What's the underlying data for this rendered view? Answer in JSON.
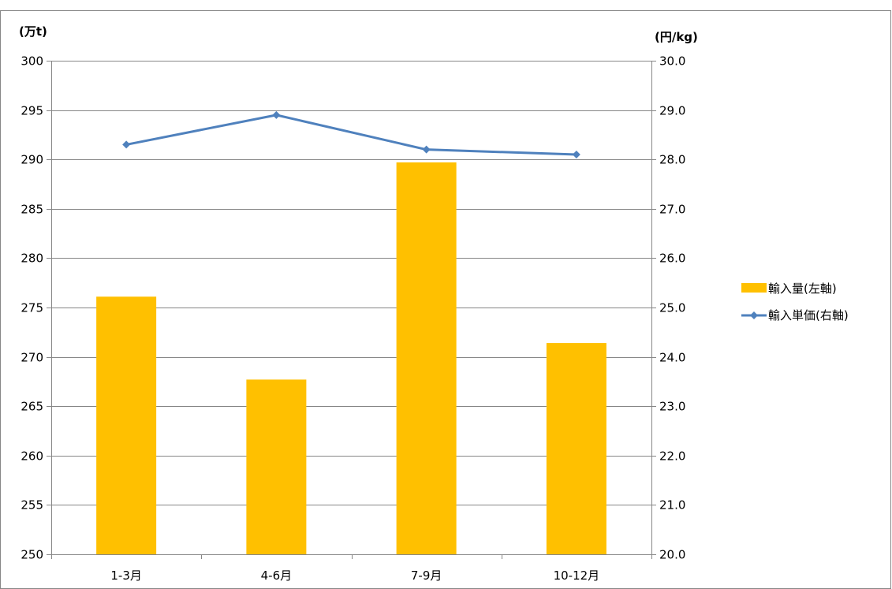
{
  "chart_data": {
    "type": "bar",
    "categories": [
      "1-3月",
      "4-6月",
      "7-9月",
      "10-12月"
    ],
    "series": [
      {
        "name": "輸入量(左軸)",
        "type": "bar",
        "axis": "left",
        "color": "#FFC000",
        "values": [
          276.1,
          267.7,
          289.7,
          271.4
        ]
      },
      {
        "name": "輸入単価(右軸)",
        "type": "line",
        "axis": "right",
        "color": "#4F81BD",
        "marker": "diamond",
        "values": [
          28.3,
          28.9,
          28.2,
          28.1
        ]
      }
    ],
    "y_left": {
      "unit_label": "(万t)",
      "range": [
        250,
        300
      ],
      "ticks": [
        "250",
        "255",
        "260",
        "265",
        "270",
        "275",
        "280",
        "285",
        "290",
        "295",
        "300"
      ]
    },
    "y_right": {
      "unit_label": "(円/kg)",
      "range": [
        20,
        30
      ],
      "ticks": [
        "20.0",
        "21.0",
        "22.0",
        "23.0",
        "24.0",
        "25.0",
        "26.0",
        "27.0",
        "28.0",
        "29.0",
        "30.0"
      ]
    },
    "grid": true,
    "legend_position": "right",
    "gridline_color": "#868686",
    "axis_color": "#868686",
    "border_color": "#868686"
  }
}
